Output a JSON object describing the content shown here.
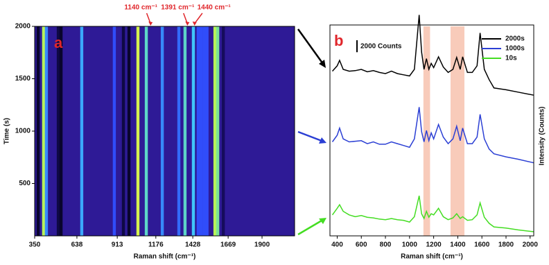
{
  "chart_data": [
    {
      "type": "heatmap",
      "panel_label": "a",
      "x_label": "Raman shift (cm⁻¹)",
      "y_label": "Time (s)",
      "xlim": [
        350,
        2122
      ],
      "ylim": [
        0,
        2000
      ],
      "xticks": [
        350,
        638,
        913,
        1176,
        1428,
        1669,
        1900
      ],
      "yticks": [
        500,
        1000,
        1500,
        2000
      ],
      "x": [
        374,
        411,
        430,
        511,
        530,
        671,
        893,
        955,
        993,
        1054,
        1111,
        1220,
        1333,
        1375,
        1432,
        1465,
        1485,
        1505,
        1525,
        1579,
        1598,
        1636
      ],
      "values": [
        0.05,
        0.9,
        0.6,
        0.1,
        0.05,
        0.65,
        0.5,
        0.1,
        0.05,
        0.95,
        0.75,
        0.6,
        0.55,
        0.75,
        0.7,
        0.5,
        0.5,
        0.5,
        0.5,
        0.9,
        0.8,
        0.15
      ],
      "annotations": [
        {
          "text": "1140 cm⁻¹",
          "x": 1140
        },
        {
          "text": "1391 cm⁻¹",
          "x": 1391
        },
        {
          "text": "1440 cm⁻¹",
          "x": 1440
        }
      ]
    },
    {
      "type": "line",
      "panel_label": "b",
      "x_label": "Raman shift (cm⁻¹)",
      "y_label": "Intensity (Counts)",
      "xlim": [
        340,
        2030
      ],
      "ylim": [
        0,
        38000
      ],
      "xticks": [
        400,
        600,
        800,
        1000,
        1200,
        1400,
        1600,
        1800,
        2000
      ],
      "legend": "upper right",
      "scale_bar": {
        "value": 2000,
        "label": "2000 Counts"
      },
      "highlights": [
        [
          1115,
          1170
        ],
        [
          1340,
          1455
        ]
      ],
      "highlight_color": "#f7c2ae",
      "x": [
        360,
        400,
        420,
        450,
        500,
        550,
        600,
        650,
        700,
        750,
        800,
        850,
        900,
        950,
        1000,
        1040,
        1080,
        1100,
        1120,
        1140,
        1160,
        1180,
        1200,
        1240,
        1280,
        1320,
        1360,
        1391,
        1420,
        1440,
        1480,
        1520,
        1560,
        1585,
        1620,
        1660,
        1700,
        1800,
        1900,
        2030
      ],
      "series": [
        {
          "name": "2000s",
          "color": "#000000",
          "values": [
            27500,
            28400,
            29300,
            27800,
            27500,
            27600,
            27800,
            27400,
            27600,
            27300,
            27100,
            27500,
            27100,
            26900,
            26700,
            27800,
            36900,
            30700,
            27800,
            29600,
            27800,
            28800,
            28100,
            29900,
            28200,
            27300,
            27800,
            29800,
            27800,
            29900,
            27300,
            27300,
            28400,
            33900,
            27800,
            26100,
            24700,
            24400,
            24000,
            23500
          ]
        },
        {
          "name": "1000s",
          "color": "#2b3fd4",
          "values": [
            15700,
            16800,
            18000,
            16200,
            15700,
            15800,
            15900,
            15400,
            15700,
            15300,
            15300,
            15700,
            15400,
            15100,
            14800,
            16200,
            21500,
            17400,
            15700,
            17600,
            15900,
            17200,
            16200,
            18600,
            16500,
            15400,
            16200,
            18300,
            15900,
            18000,
            15400,
            15400,
            16500,
            20300,
            16200,
            14500,
            13700,
            13200,
            12800,
            12200
          ]
        },
        {
          "name": "10s",
          "color": "#44dd22",
          "values": [
            3500,
            4600,
            5200,
            4100,
            3500,
            3200,
            3400,
            3100,
            3000,
            2800,
            2700,
            2900,
            2700,
            2600,
            2300,
            3200,
            6700,
            3700,
            2900,
            4100,
            3100,
            3700,
            3500,
            4600,
            3200,
            2700,
            3000,
            3700,
            2900,
            3200,
            2600,
            2700,
            3500,
            5500,
            3100,
            2100,
            1500,
            1300,
            1000,
            700
          ]
        }
      ]
    }
  ]
}
